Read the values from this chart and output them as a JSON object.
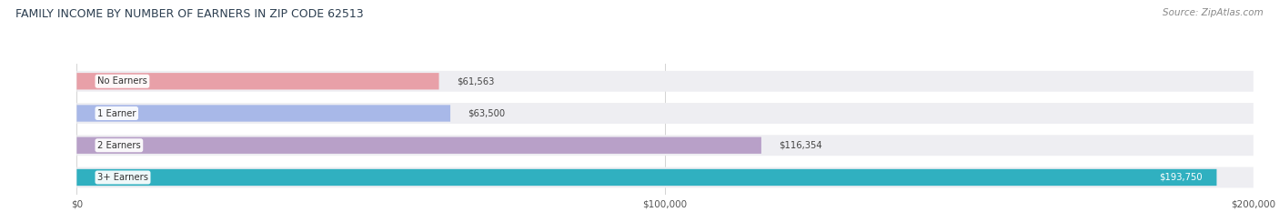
{
  "title": "FAMILY INCOME BY NUMBER OF EARNERS IN ZIP CODE 62513",
  "source": "Source: ZipAtlas.com",
  "categories": [
    "No Earners",
    "1 Earner",
    "2 Earners",
    "3+ Earners"
  ],
  "values": [
    61563,
    63500,
    116354,
    193750
  ],
  "bar_colors": [
    "#E8A0A8",
    "#A8B8E8",
    "#B8A0C8",
    "#30B0C0"
  ],
  "track_color": "#EEEEF2",
  "value_label_inside": [
    false,
    false,
    false,
    true
  ],
  "x_max": 200000,
  "x_ticks": [
    0,
    100000,
    200000
  ],
  "x_tick_labels": [
    "$0",
    "$100,000",
    "$200,000"
  ],
  "bg_color": "#FFFFFF",
  "plot_bg": "#F8F8FA"
}
